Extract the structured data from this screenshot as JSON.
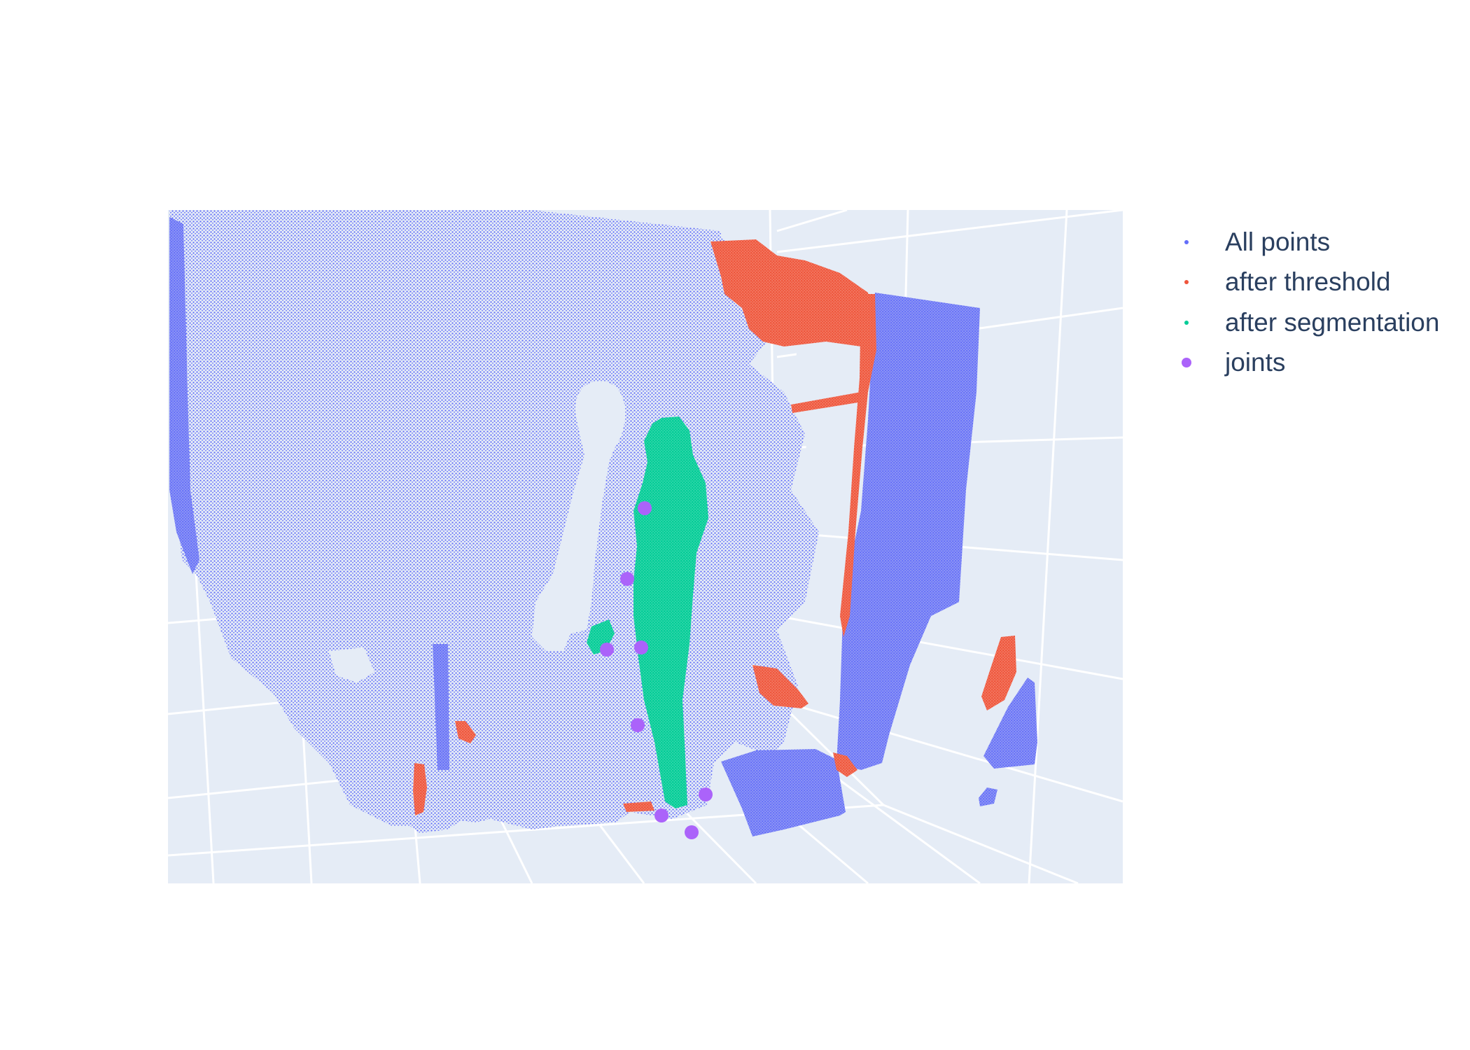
{
  "chart_data": {
    "type": "scatter3d",
    "title": "",
    "scene": {
      "background": "#e5ecf6",
      "grid": true,
      "gridcolor": "#ffffff",
      "axis_titles_visible": false,
      "tick_labels_visible": false
    },
    "legend": {
      "placement": "right",
      "entries": [
        {
          "name": "All points",
          "color": "#636efa",
          "marker": "small"
        },
        {
          "name": "after threshold",
          "color": "#ef553b",
          "marker": "small"
        },
        {
          "name": "after segmentation",
          "color": "#00cc96",
          "marker": "small"
        },
        {
          "name": "joints",
          "color": "#ab63fa",
          "marker": "large"
        }
      ]
    },
    "series": [
      {
        "name": "All points",
        "color": "#636efa",
        "description_count": "dense point cloud of room walls, door frame and floor objects"
      },
      {
        "name": "after threshold",
        "color": "#ef553b"
      },
      {
        "name": "after segmentation",
        "color": "#00cc96"
      },
      {
        "name": "joints",
        "color": "#ab63fa",
        "count": 8
      }
    ]
  }
}
